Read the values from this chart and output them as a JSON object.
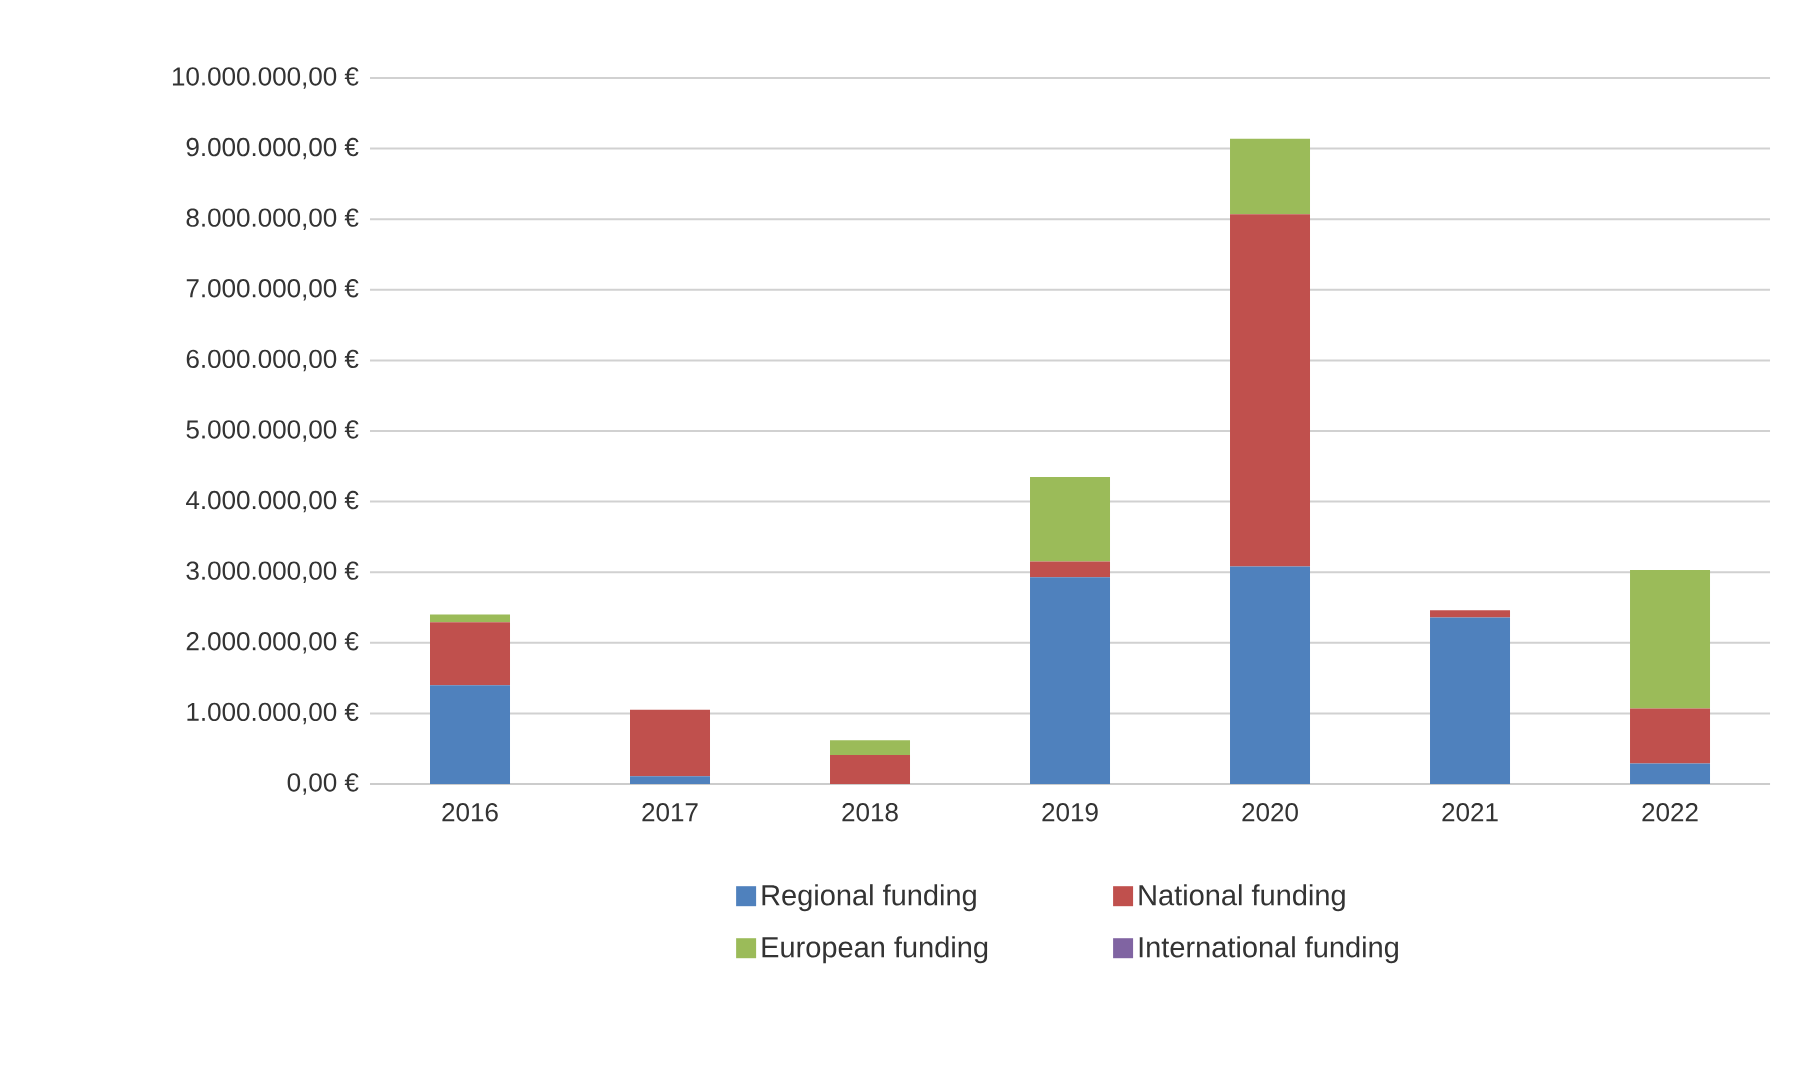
{
  "chart_data": {
    "type": "bar",
    "stacked": true,
    "categories": [
      "2016",
      "2017",
      "2018",
      "2019",
      "2020",
      "2021",
      "2022"
    ],
    "series": [
      {
        "name": "Regional funding",
        "color": "#4f81bd",
        "values": [
          1400000,
          110000,
          0,
          2930000,
          3080000,
          2360000,
          290000
        ]
      },
      {
        "name": "National funding",
        "color": "#c0504d",
        "values": [
          890000,
          940000,
          410000,
          220000,
          4990000,
          100000,
          780000
        ]
      },
      {
        "name": "European funding",
        "color": "#9bbb59",
        "values": [
          110000,
          0,
          210000,
          1200000,
          1070000,
          0,
          1960000
        ]
      },
      {
        "name": "International funding",
        "color": "#8064a2",
        "values": [
          0,
          0,
          0,
          0,
          0,
          0,
          0
        ]
      }
    ],
    "ylim": [
      0,
      10000000
    ],
    "yticks": [
      {
        "value": 0,
        "label": "0,00 €"
      },
      {
        "value": 1000000,
        "label": "1.000.000,00 €"
      },
      {
        "value": 2000000,
        "label": "2.000.000,00 €"
      },
      {
        "value": 3000000,
        "label": "3.000.000,00 €"
      },
      {
        "value": 4000000,
        "label": "4.000.000,00 €"
      },
      {
        "value": 5000000,
        "label": "5.000.000,00 €"
      },
      {
        "value": 6000000,
        "label": "6.000.000,00 €"
      },
      {
        "value": 7000000,
        "label": "7.000.000,00 €"
      },
      {
        "value": 8000000,
        "label": "8.000.000,00 €"
      },
      {
        "value": 9000000,
        "label": "9.000.000,00 €"
      },
      {
        "value": 10000000,
        "label": "10.000.000,00 €"
      }
    ],
    "grid": "y",
    "legend": "bottom"
  }
}
